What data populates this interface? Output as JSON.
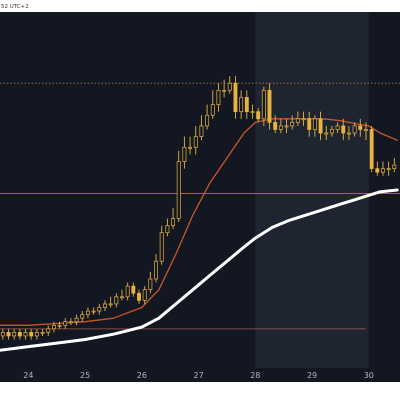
{
  "header": {
    "time_text": "52 UTC+2"
  },
  "colors": {
    "background": "#131722",
    "weekend_shade": "#1f2431",
    "candle": "#e6b340",
    "ma_fast": "#c9562b",
    "ma_slow": "#ffffff",
    "level_line": "#b0782f",
    "level_line_low": "#a85b52",
    "axis_text": "#b2b5be",
    "grid": "#2a2e39"
  },
  "chart_data": {
    "type": "line",
    "title": "",
    "xlabel": "",
    "ylabel": "",
    "x_ticks": [
      "24",
      "25",
      "26",
      "27",
      "28",
      "29",
      "30"
    ],
    "x_range": [
      23.5,
      30.55
    ],
    "y_range": [
      0,
      100
    ],
    "grid": false,
    "shaded_range": [
      28,
      30
    ],
    "levels": [
      {
        "value": 80,
        "name": "level-top"
      },
      {
        "value": 49,
        "name": "level-mid"
      },
      {
        "value": 11,
        "name": "level-low"
      }
    ],
    "candles": {
      "x": [
        23.55,
        23.65,
        23.75,
        23.85,
        23.95,
        24.05,
        24.15,
        24.25,
        24.35,
        24.45,
        24.55,
        24.65,
        24.75,
        24.85,
        24.95,
        25.05,
        25.15,
        25.25,
        25.35,
        25.45,
        25.55,
        25.65,
        25.75,
        25.85,
        25.95,
        26.05,
        26.15,
        26.25,
        26.35,
        26.45,
        26.55,
        26.65,
        26.75,
        26.85,
        26.95,
        27.05,
        27.15,
        27.25,
        27.35,
        27.45,
        27.55,
        27.65,
        27.75,
        27.85,
        27.95,
        28.05,
        28.15,
        28.25,
        28.35,
        28.45,
        28.55,
        28.65,
        28.75,
        28.85,
        28.95,
        29.05,
        29.15,
        29.25,
        29.35,
        29.45,
        29.55,
        29.65,
        29.75,
        29.85,
        29.95,
        30.05,
        30.15,
        30.25,
        30.35,
        30.45
      ],
      "open": [
        9,
        10,
        9,
        10,
        9,
        10,
        9,
        10,
        10,
        11,
        12,
        12,
        13,
        13,
        14,
        15,
        16,
        16,
        17,
        18,
        18,
        20,
        20,
        23,
        21,
        19,
        22,
        25,
        30,
        38,
        40,
        42,
        58,
        62,
        62,
        65,
        68,
        71,
        74,
        78,
        78,
        80,
        72,
        76,
        72,
        72,
        70,
        78,
        69,
        67,
        68,
        68,
        69,
        70,
        70,
        67,
        70,
        66,
        66,
        67,
        68,
        66,
        66,
        68,
        67,
        67,
        56,
        55,
        56,
        56
      ],
      "close": [
        10,
        9,
        10,
        9,
        10,
        9,
        10,
        10,
        11,
        12,
        12,
        13,
        13,
        14,
        15,
        16,
        16,
        17,
        18,
        18,
        20,
        20,
        23,
        21,
        19,
        22,
        25,
        30,
        38,
        40,
        42,
        58,
        62,
        62,
        65,
        68,
        71,
        74,
        78,
        78,
        80,
        72,
        76,
        72,
        72,
        70,
        78,
        69,
        67,
        68,
        68,
        69,
        70,
        70,
        67,
        70,
        66,
        66,
        67,
        68,
        66,
        66,
        68,
        67,
        67,
        56,
        55,
        56,
        56,
        57
      ],
      "high": [
        11,
        11,
        11,
        11,
        11,
        11,
        11,
        11,
        12,
        13,
        13,
        14,
        14,
        15,
        16,
        17,
        17,
        18,
        19,
        20,
        21,
        22,
        24,
        24,
        22,
        23,
        27,
        32,
        40,
        42,
        45,
        61,
        65,
        65,
        68,
        71,
        74,
        78,
        80,
        81,
        82,
        82,
        78,
        78,
        74,
        73,
        79,
        80,
        71,
        70,
        70,
        71,
        72,
        72,
        72,
        71,
        72,
        68,
        68,
        69,
        70,
        68,
        69,
        70,
        69,
        68,
        58,
        58,
        58,
        59
      ],
      "low": [
        8,
        8,
        8,
        8,
        8,
        8,
        8,
        9,
        9,
        10,
        11,
        11,
        12,
        12,
        13,
        14,
        15,
        15,
        16,
        17,
        17,
        19,
        19,
        20,
        18,
        18,
        21,
        24,
        29,
        37,
        39,
        41,
        56,
        60,
        60,
        64,
        67,
        70,
        72,
        76,
        77,
        70,
        70,
        70,
        70,
        69,
        68,
        67,
        66,
        66,
        66,
        67,
        68,
        68,
        65,
        65,
        64,
        64,
        65,
        66,
        64,
        64,
        65,
        65,
        64,
        55,
        54,
        54,
        54,
        55
      ]
    },
    "series": [
      {
        "color": "#c9562b",
        "x": [
          23.5,
          24.0,
          24.5,
          25.0,
          25.5,
          26.0,
          26.3,
          26.6,
          26.9,
          27.2,
          27.5,
          27.8,
          28.0,
          28.3,
          28.6,
          28.9,
          29.2,
          29.5,
          29.8,
          30.0,
          30.2,
          30.5
        ],
        "values": [
          12,
          12,
          12.5,
          13,
          14,
          17,
          22,
          32,
          43,
          52,
          59,
          66,
          69,
          70,
          70,
          70,
          70,
          69.5,
          68.5,
          68,
          66,
          64
        ]
      },
      {
        "color": "#ffffff",
        "x": [
          23.5,
          24.0,
          24.5,
          25.0,
          25.5,
          26.0,
          26.3,
          26.6,
          26.9,
          27.2,
          27.5,
          27.8,
          28.0,
          28.3,
          28.6,
          28.9,
          29.2,
          29.5,
          29.8,
          30.0,
          30.2,
          30.5
        ],
        "values": [
          5,
          6,
          7,
          8,
          9.5,
          11.5,
          14,
          18,
          22,
          26,
          30,
          34,
          36.5,
          39.5,
          41.5,
          43,
          44.5,
          46,
          47.5,
          48.5,
          49.5,
          50
        ]
      }
    ]
  }
}
